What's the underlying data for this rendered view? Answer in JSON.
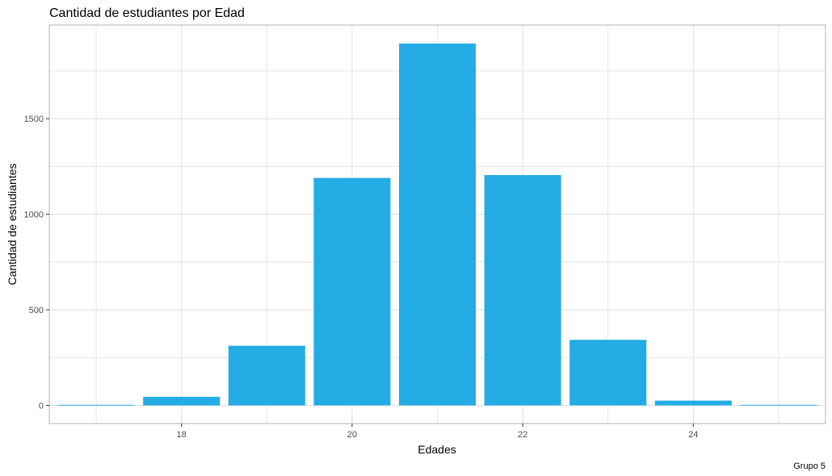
{
  "chart_data": {
    "type": "bar",
    "title": "Cantidad de estudiantes por Edad",
    "xlabel": "Edades",
    "ylabel": "Cantidad de estudiantes",
    "caption": "Grupo 5",
    "x": [
      17,
      18,
      19,
      20,
      21,
      22,
      23,
      24,
      25
    ],
    "values": [
      3,
      45,
      312,
      1190,
      1893,
      1205,
      343,
      25,
      3
    ],
    "xlim": [
      16.45,
      25.55
    ],
    "ylim": [
      -95,
      1990
    ],
    "xticks": [
      18,
      20,
      22,
      24
    ],
    "xtick_labels": [
      "18",
      "20",
      "22",
      "24"
    ],
    "yticks": [
      0,
      500,
      1000,
      1500
    ],
    "ytick_labels": [
      "0",
      "500",
      "1000",
      "1500"
    ],
    "grid": true,
    "legend": "none",
    "colors": {
      "bar": "#24ace4",
      "grid": "#dedede",
      "panel_border": "#b3b3b3",
      "tick_label": "#4d4d4d"
    }
  }
}
